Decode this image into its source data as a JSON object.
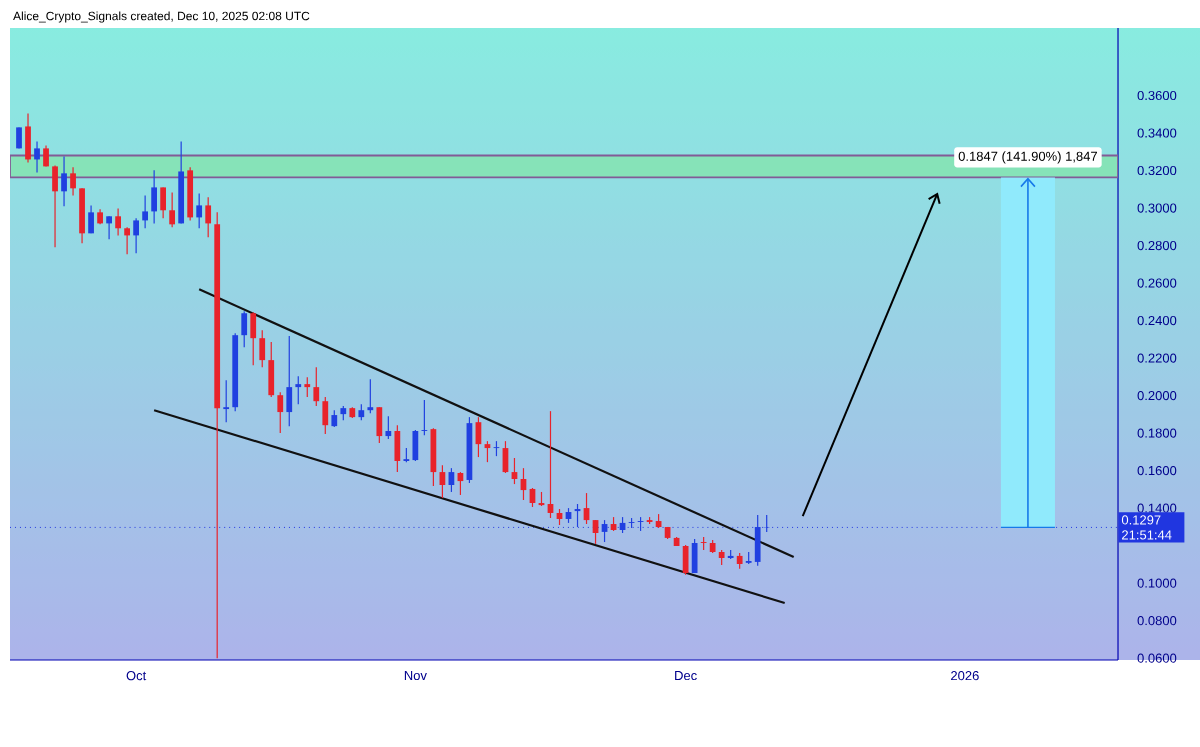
{
  "chart_data": {
    "type": "candlestick",
    "annotations": [
      "Alice_Crypto_Signals created, Dec 10, 2025 02:08 UTC",
      {
        "text": "0.1847 (141.90%) 1,847",
        "x": "2026-01-08",
        "y": 0.327
      }
    ],
    "x": [
      "2025-09-18",
      "2025-09-19",
      "2025-09-20",
      "2025-09-21",
      "2025-09-22",
      "2025-09-23",
      "2025-09-24",
      "2025-09-25",
      "2025-09-26",
      "2025-09-27",
      "2025-09-28",
      "2025-09-29",
      "2025-09-30",
      "2025-10-01",
      "2025-10-02",
      "2025-10-03",
      "2025-10-04",
      "2025-10-05",
      "2025-10-06",
      "2025-10-07",
      "2025-10-08",
      "2025-10-09",
      "2025-10-10",
      "2025-10-11",
      "2025-10-12",
      "2025-10-13",
      "2025-10-14",
      "2025-10-15",
      "2025-10-16",
      "2025-10-17",
      "2025-10-18",
      "2025-10-19",
      "2025-10-20",
      "2025-10-21",
      "2025-10-22",
      "2025-10-23",
      "2025-10-24",
      "2025-10-25",
      "2025-10-26",
      "2025-10-27",
      "2025-10-28",
      "2025-10-29",
      "2025-10-30",
      "2025-10-31",
      "2025-11-01",
      "2025-11-02",
      "2025-11-03",
      "2025-11-04",
      "2025-11-05",
      "2025-11-06",
      "2025-11-07",
      "2025-11-08",
      "2025-11-09",
      "2025-11-10",
      "2025-11-11",
      "2025-11-12",
      "2025-11-13",
      "2025-11-14",
      "2025-11-15",
      "2025-11-16",
      "2025-11-17",
      "2025-11-18",
      "2025-11-19",
      "2025-11-20",
      "2025-11-21",
      "2025-11-22",
      "2025-11-23",
      "2025-11-24",
      "2025-11-25",
      "2025-11-26",
      "2025-11-27",
      "2025-11-28",
      "2025-11-29",
      "2025-11-30",
      "2025-12-01",
      "2025-12-02",
      "2025-12-03",
      "2025-12-04",
      "2025-12-05",
      "2025-12-06",
      "2025-12-07",
      "2025-12-08",
      "2025-12-09",
      "2025-12-10"
    ],
    "ohlc": [
      [
        0.3318,
        0.343,
        0.3318,
        0.343
      ],
      [
        0.3435,
        0.3504,
        0.3243,
        0.3259
      ],
      [
        0.3259,
        0.3355,
        0.319,
        0.3318
      ],
      [
        0.3318,
        0.3334,
        0.3222,
        0.3222
      ],
      [
        0.3222,
        0.3227,
        0.2791,
        0.3089
      ],
      [
        0.3089,
        0.3275,
        0.3009,
        0.3185
      ],
      [
        0.3185,
        0.3217,
        0.3067,
        0.3105
      ],
      [
        0.3105,
        0.3105,
        0.2812,
        0.2865
      ],
      [
        0.2865,
        0.3014,
        0.2865,
        0.2977
      ],
      [
        0.2977,
        0.2993,
        0.2913,
        0.2918
      ],
      [
        0.2918,
        0.2956,
        0.2833,
        0.2956
      ],
      [
        0.2956,
        0.2998,
        0.2854,
        0.2892
      ],
      [
        0.2892,
        0.2897,
        0.2753,
        0.2854
      ],
      [
        0.2854,
        0.2945,
        0.2759,
        0.2934
      ],
      [
        0.2934,
        0.3067,
        0.2892,
        0.2982
      ],
      [
        0.2982,
        0.3201,
        0.2918,
        0.311
      ],
      [
        0.311,
        0.311,
        0.2945,
        0.2988
      ],
      [
        0.2988,
        0.3083,
        0.2897,
        0.2913
      ],
      [
        0.2918,
        0.3355,
        0.2918,
        0.3195
      ],
      [
        0.3201,
        0.3217,
        0.2934,
        0.295
      ],
      [
        0.295,
        0.3078,
        0.2892,
        0.3014
      ],
      [
        0.3014,
        0.3057,
        0.2844,
        0.2918
      ],
      [
        0.2913,
        0.2977,
        0.06,
        0.1933
      ],
      [
        0.1928,
        0.2082,
        0.1858,
        0.1938
      ],
      [
        0.1938,
        0.2332,
        0.1917,
        0.2322
      ],
      [
        0.2322,
        0.245,
        0.2258,
        0.2439
      ],
      [
        0.2439,
        0.2444,
        0.2162,
        0.2306
      ],
      [
        0.2306,
        0.2348,
        0.2151,
        0.2189
      ],
      [
        0.2189,
        0.2285,
        0.1992,
        0.2002
      ],
      [
        0.2002,
        0.2018,
        0.18,
        0.1912
      ],
      [
        0.1912,
        0.2317,
        0.1837,
        0.2045
      ],
      [
        0.2045,
        0.2103,
        0.1954,
        0.2061
      ],
      [
        0.2061,
        0.2098,
        0.1992,
        0.2045
      ],
      [
        0.2045,
        0.2151,
        0.1944,
        0.197
      ],
      [
        0.197,
        0.1992,
        0.1795,
        0.1842
      ],
      [
        0.1837,
        0.1922,
        0.1832,
        0.1896
      ],
      [
        0.1901,
        0.1944,
        0.1869,
        0.1933
      ],
      [
        0.1933,
        0.1938,
        0.188,
        0.1885
      ],
      [
        0.1885,
        0.1954,
        0.1869,
        0.1922
      ],
      [
        0.1922,
        0.2087,
        0.1906,
        0.1938
      ],
      [
        0.1938,
        0.1938,
        0.1747,
        0.1784
      ],
      [
        0.1784,
        0.189,
        0.1768,
        0.1811
      ],
      [
        0.1811,
        0.1842,
        0.1592,
        0.1651
      ],
      [
        0.1651,
        0.172,
        0.1645,
        0.1661
      ],
      [
        0.1656,
        0.1816,
        0.1651,
        0.1811
      ],
      [
        0.1811,
        0.1976,
        0.1789,
        0.1816
      ],
      [
        0.1821,
        0.1826,
        0.1518,
        0.1592
      ],
      [
        0.1592,
        0.1629,
        0.1454,
        0.1523
      ],
      [
        0.1523,
        0.1613,
        0.1486,
        0.1592
      ],
      [
        0.1587,
        0.1592,
        0.147,
        0.1544
      ],
      [
        0.155,
        0.1885,
        0.1534,
        0.1853
      ],
      [
        0.1858,
        0.1885,
        0.1672,
        0.1741
      ],
      [
        0.1741,
        0.1757,
        0.1645,
        0.172
      ],
      [
        0.172,
        0.1757,
        0.1677,
        0.1725
      ],
      [
        0.172,
        0.1757,
        0.1587,
        0.1592
      ],
      [
        0.1592,
        0.1667,
        0.1528,
        0.1555
      ],
      [
        0.1555,
        0.1613,
        0.1443,
        0.1496
      ],
      [
        0.1502,
        0.1507,
        0.1406,
        0.1427
      ],
      [
        0.1427,
        0.1486,
        0.1411,
        0.1416
      ],
      [
        0.1422,
        0.1917,
        0.1347,
        0.1374
      ],
      [
        0.1374,
        0.1395,
        0.131,
        0.1342
      ],
      [
        0.1342,
        0.14,
        0.1321,
        0.1379
      ],
      [
        0.1384,
        0.1422,
        0.1299,
        0.1395
      ],
      [
        0.14,
        0.148,
        0.1315,
        0.1336
      ],
      [
        0.1336,
        0.1336,
        0.1209,
        0.1267
      ],
      [
        0.1273,
        0.1336,
        0.1219,
        0.1315
      ],
      [
        0.1315,
        0.1352,
        0.1278,
        0.1283
      ],
      [
        0.1283,
        0.1352,
        0.1267,
        0.1321
      ],
      [
        0.1321,
        0.1347,
        0.1294,
        0.1326
      ],
      [
        0.1326,
        0.1352,
        0.1278,
        0.1331
      ],
      [
        0.1336,
        0.1352,
        0.1315,
        0.1326
      ],
      [
        0.1331,
        0.1368,
        0.1294,
        0.1299
      ],
      [
        0.1299,
        0.1299,
        0.1235,
        0.1241
      ],
      [
        0.1241,
        0.1246,
        0.1198,
        0.1198
      ],
      [
        0.1198,
        0.1203,
        0.1044,
        0.1054
      ],
      [
        0.1054,
        0.1235,
        0.1054,
        0.1214
      ],
      [
        0.1219,
        0.1246,
        0.1177,
        0.1214
      ],
      [
        0.1214,
        0.123,
        0.1161,
        0.1166
      ],
      [
        0.1166,
        0.1177,
        0.1097,
        0.1134
      ],
      [
        0.1134,
        0.1177,
        0.1129,
        0.1145
      ],
      [
        0.1145,
        0.1161,
        0.1076,
        0.1102
      ],
      [
        0.1108,
        0.1166,
        0.1102,
        0.1118
      ],
      [
        0.1113,
        0.1363,
        0.1092,
        0.1299
      ],
      [
        0.1295,
        0.1363,
        0.1273,
        0.1297
      ]
    ],
    "colors": [
      "#2040e0",
      "#e8232b",
      "#2040e0",
      "#e8232b",
      "#e8232b",
      "#2040e0",
      "#e8232b",
      "#e8232b",
      "#2040e0",
      "#e8232b",
      "#2040e0",
      "#e8232b",
      "#e8232b",
      "#2040e0",
      "#2040e0",
      "#2040e0",
      "#e8232b",
      "#e8232b",
      "#2040e0",
      "#e8232b",
      "#2040e0",
      "#e8232b",
      "#e8232b",
      "#2040e0",
      "#2040e0",
      "#2040e0",
      "#e8232b",
      "#e8232b",
      "#e8232b",
      "#e8232b",
      "#2040e0",
      "#2040e0",
      "#e8232b",
      "#e8232b",
      "#e8232b",
      "#2040e0",
      "#2040e0",
      "#e8232b",
      "#2040e0",
      "#2040e0",
      "#e8232b",
      "#2040e0",
      "#e8232b",
      "#2040e0",
      "#2040e0",
      "#2040e0",
      "#e8232b",
      "#e8232b",
      "#2040e0",
      "#e8232b",
      "#2040e0",
      "#e8232b",
      "#e8232b",
      "#2040e0",
      "#e8232b",
      "#e8232b",
      "#e8232b",
      "#e8232b",
      "#e8232b",
      "#e8232b",
      "#e8232b",
      "#2040e0",
      "#2040e0",
      "#e8232b",
      "#e8232b",
      "#2040e0",
      "#e8232b",
      "#2040e0",
      "#2040e0",
      "#2040e0",
      "#e8232b",
      "#e8232b",
      "#e8232b",
      "#e8232b",
      "#e8232b",
      "#2040e0",
      "#e8232b",
      "#e8232b",
      "#e8232b",
      "#2040e0",
      "#e8232b",
      "#2040e0",
      "#2040e0",
      "#2040e0"
    ],
    "series": [
      {
        "type": "line",
        "color": "#111111",
        "x": [
          "2025-10-08",
          "2025-12-13"
        ],
        "values": [
          0.2567,
          0.1139
        ]
      },
      {
        "type": "line",
        "color": "#111111",
        "x": [
          "2025-10-03",
          "2025-12-12"
        ],
        "values": [
          0.1922,
          0.0894
        ]
      }
    ],
    "bands": [
      {
        "axis": "y",
        "from": 0.3163,
        "to": 0.328,
        "color": "#86e3b8"
      }
    ],
    "ref_lines": [
      {
        "axis": "y",
        "value": 0.1297,
        "label": "0.1297 21:51:44",
        "color": "#2036e0",
        "line_style": "dotted"
      }
    ],
    "xlim": [
      "2025-09-17",
      "2026-01-18"
    ],
    "xticks": [
      {
        "value": "2025-10-01",
        "label": "Oct"
      },
      {
        "value": "2025-11-01",
        "label": "Nov"
      },
      {
        "value": "2025-12-01",
        "label": "Dec"
      },
      {
        "value": "2026-01-01",
        "label": "2026"
      }
    ],
    "ylim": [
      0.059,
      0.396
    ],
    "yticks": [
      {
        "value": 0.06,
        "label": "0.0600"
      },
      {
        "value": 0.08,
        "label": "0.0800"
      },
      {
        "value": 0.1,
        "label": "0.1000"
      },
      {
        "value": 0.14,
        "label": "0.1400"
      },
      {
        "value": 0.16,
        "label": "0.1600"
      },
      {
        "value": 0.18,
        "label": "0.1800"
      },
      {
        "value": 0.2,
        "label": "0.2000"
      },
      {
        "value": 0.22,
        "label": "0.2200"
      },
      {
        "value": 0.24,
        "label": "0.2400"
      },
      {
        "value": 0.26,
        "label": "0.2600"
      },
      {
        "value": 0.28,
        "label": "0.2800"
      },
      {
        "value": 0.3,
        "label": "0.3000"
      },
      {
        "value": 0.32,
        "label": "0.3200"
      },
      {
        "value": 0.34,
        "label": "0.3400"
      },
      {
        "value": 0.36,
        "label": "0.3600"
      }
    ]
  }
}
